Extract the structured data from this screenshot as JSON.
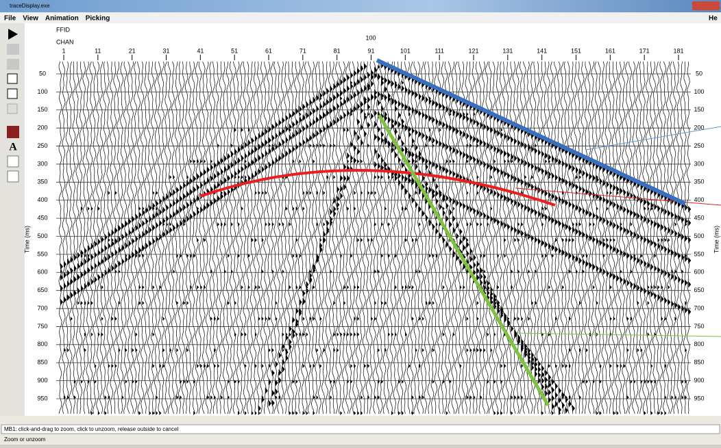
{
  "window": {
    "title": "traceDisplay.exe"
  },
  "menu": {
    "items": [
      "File",
      "View",
      "Animation",
      "Picking"
    ],
    "help": "He"
  },
  "toolbar": {
    "text_tool": "A"
  },
  "plot": {
    "ffid_label": "FFID",
    "ffid": 100,
    "chan_label": "CHAN",
    "chan_ticks": [
      1,
      11,
      21,
      31,
      41,
      51,
      61,
      71,
      81,
      91,
      101,
      111,
      121,
      131,
      141,
      151,
      161,
      171,
      181
    ],
    "time_ticks": [
      50,
      100,
      150,
      200,
      250,
      300,
      350,
      400,
      450,
      500,
      550,
      600,
      650,
      700,
      750,
      800,
      850,
      900,
      950
    ],
    "y_label": "Time (ms)"
  },
  "status": {
    "hint": "MB1: click-and-drag to zoom, click to unzoom, release outside to cancel",
    "mode": "Zoom or unzoom"
  }
}
